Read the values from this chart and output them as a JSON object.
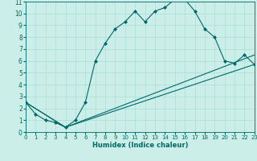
{
  "title": "",
  "xlabel": "Humidex (Indice chaleur)",
  "bg_color": "#cceee8",
  "line_color": "#006868",
  "grid_color": "#aaddd8",
  "xlim": [
    0,
    23
  ],
  "ylim": [
    0,
    11
  ],
  "xticks": [
    0,
    1,
    2,
    3,
    4,
    5,
    6,
    7,
    8,
    9,
    10,
    11,
    12,
    13,
    14,
    15,
    16,
    17,
    18,
    19,
    20,
    21,
    22,
    23
  ],
  "yticks": [
    0,
    1,
    2,
    3,
    4,
    5,
    6,
    7,
    8,
    9,
    10,
    11
  ],
  "line1_x": [
    0,
    1,
    2,
    3,
    4,
    5,
    6,
    7,
    8,
    9,
    10,
    11,
    12,
    13,
    14,
    15,
    16,
    17,
    18,
    19,
    20,
    21,
    22,
    23
  ],
  "line1_y": [
    2.5,
    1.5,
    1.0,
    0.8,
    0.4,
    1.0,
    2.5,
    6.0,
    7.5,
    8.7,
    9.3,
    10.2,
    9.3,
    10.2,
    10.5,
    11.2,
    11.2,
    10.2,
    8.7,
    8.0,
    6.0,
    5.8,
    6.5,
    5.7
  ],
  "line2_x": [
    0,
    4,
    23
  ],
  "line2_y": [
    2.5,
    0.4,
    6.5
  ],
  "line3_x": [
    0,
    4,
    23
  ],
  "line3_y": [
    2.5,
    0.4,
    5.7
  ],
  "xlabel_fontsize": 6.0,
  "tick_fontsize_x": 5.0,
  "tick_fontsize_y": 5.5
}
